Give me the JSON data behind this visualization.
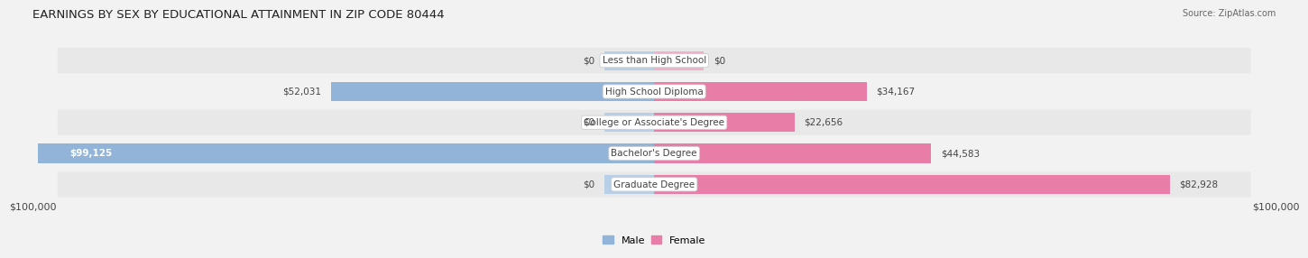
{
  "title": "EARNINGS BY SEX BY EDUCATIONAL ATTAINMENT IN ZIP CODE 80444",
  "source": "Source: ZipAtlas.com",
  "categories": [
    "Less than High School",
    "High School Diploma",
    "College or Associate's Degree",
    "Bachelor's Degree",
    "Graduate Degree"
  ],
  "male_values": [
    0,
    52031,
    0,
    99125,
    0
  ],
  "female_values": [
    0,
    34167,
    22656,
    44583,
    82928
  ],
  "male_color": "#92b4d8",
  "female_color": "#e87da8",
  "male_stub_color": "#b8cfe8",
  "female_stub_color": "#f0b0cc",
  "max_value": 100000,
  "stub_value": 8000,
  "xlabel_left": "$100,000",
  "xlabel_right": "$100,000",
  "male_label": "Male",
  "female_label": "Female",
  "background_color": "#f2f2f2",
  "row_colors": [
    "#e8e8e8",
    "#f2f2f2"
  ],
  "bar_height": 0.62,
  "label_color": "#444444",
  "title_color": "#222222",
  "title_fontsize": 9.5,
  "axis_fontsize": 8,
  "bar_label_fontsize": 7.5,
  "category_fontsize": 7.5
}
